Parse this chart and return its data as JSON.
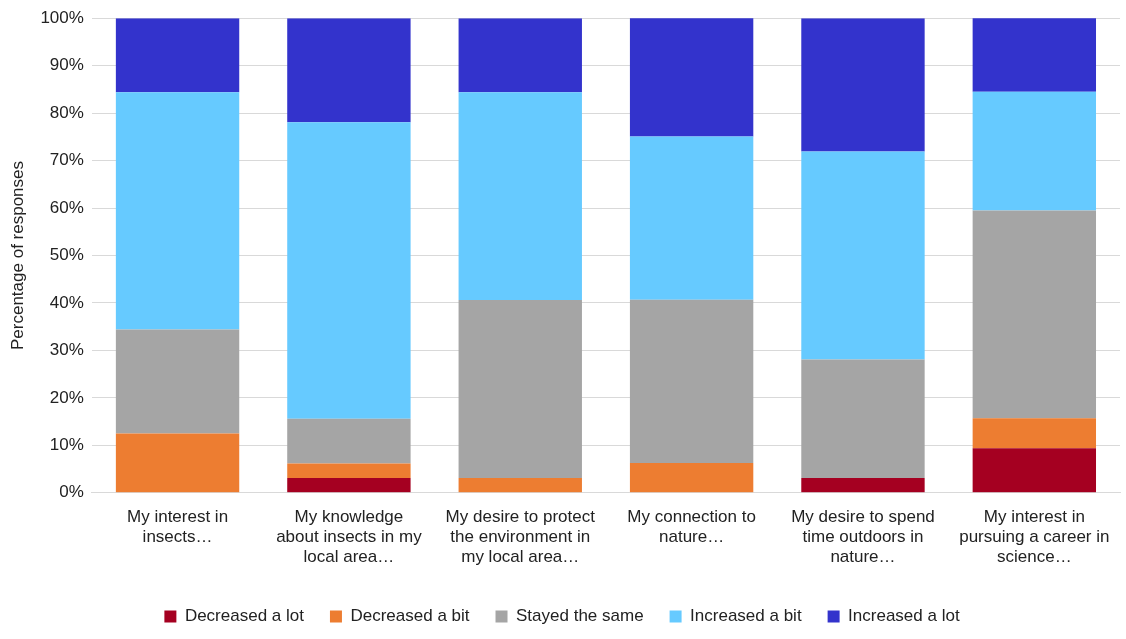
{
  "chart_data": {
    "type": "bar",
    "stacked": true,
    "ylabel": "Percentage of responses",
    "categories": [
      "My interest in insects…",
      "My knowledge about insects in my local area…",
      "My desire to protect the environment in my local area…",
      "My connection to nature…",
      "My desire to spend time outdoors in nature…",
      "My interest in pursuing a career in science…"
    ],
    "series": [
      {
        "name": "Decreased a lot",
        "color": "#a50021",
        "values": [
          0,
          3.1,
          0,
          0,
          3.1,
          9.4
        ]
      },
      {
        "name": "Decreased a bit",
        "color": "#ed7d31",
        "values": [
          12.5,
          3.1,
          3.1,
          6.3,
          0,
          6.3
        ]
      },
      {
        "name": "Stayed the same",
        "color": "#a5a5a5",
        "values": [
          21.9,
          9.4,
          37.5,
          34.4,
          25,
          43.8
        ]
      },
      {
        "name": "Increased a bit",
        "color": "#66caff",
        "values": [
          50,
          62.5,
          43.8,
          34.4,
          43.8,
          25
        ]
      },
      {
        "name": "Increased a lot",
        "color": "#3333cc",
        "values": [
          15.6,
          21.9,
          15.6,
          25,
          28.1,
          15.6
        ]
      }
    ],
    "ylim": [
      0,
      100
    ],
    "yticks": [
      {
        "value": 0,
        "label": "0%"
      },
      {
        "value": 10,
        "label": "10%"
      },
      {
        "value": 20,
        "label": "20%"
      },
      {
        "value": 30,
        "label": "30%"
      },
      {
        "value": 40,
        "label": "40%"
      },
      {
        "value": 50,
        "label": "50%"
      },
      {
        "value": 60,
        "label": "60%"
      },
      {
        "value": 70,
        "label": "70%"
      },
      {
        "value": 80,
        "label": "80%"
      },
      {
        "value": 90,
        "label": "90%"
      },
      {
        "value": 100,
        "label": "100%"
      }
    ],
    "grid": "y",
    "legend": "bottom"
  }
}
